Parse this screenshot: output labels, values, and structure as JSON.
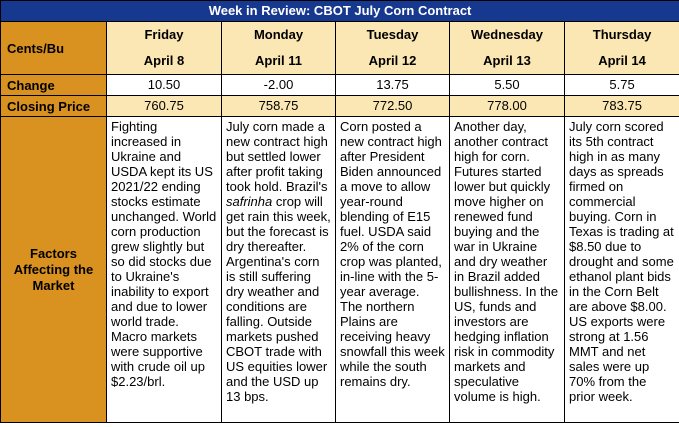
{
  "title": "Week in Review: CBOT July Corn Contract",
  "row_labels": {
    "unit": "Cents/Bu",
    "change": "Change",
    "closing": "Closing Price",
    "factors": "Factors Affecting the Market"
  },
  "days": [
    {
      "name": "Friday",
      "date": "April 8",
      "change": "10.50",
      "closing": "760.75",
      "factor_parts": [
        "Fighting increased in Ukraine and USDA kept its US 2021/22 ending stocks estimate unchanged. World corn production grew slightly but so did stocks due to Ukraine's inability to export and due to lower world trade. Macro markets were supportive with crude oil up $2.23/brl.",
        "",
        ""
      ]
    },
    {
      "name": "Monday",
      "date": "April 11",
      "change": "-2.00",
      "closing": "758.75",
      "factor_parts": [
        "July corn made a new contract high but settled lower after profit taking took hold. Brazil's ",
        "safrinha",
        " crop will get rain this week, but the forecast is dry thereafter. Argentina's corn is still suffering dry weather and conditions are falling. Outside markets pushed CBOT trade with US equities lower and the USD up 13 bps."
      ]
    },
    {
      "name": "Tuesday",
      "date": "April 12",
      "change": "13.75",
      "closing": "772.50",
      "factor_parts": [
        "Corn posted a new contract high after President Biden announced a move to allow year-round blending of E15 fuel. USDA said 2% of the corn crop was planted, in-line with the 5-year average. The northern Plains are receiving heavy snowfall this week while the south remains dry.",
        "",
        ""
      ]
    },
    {
      "name": "Wednesday",
      "date": "April 13",
      "change": "5.50",
      "closing": "778.00",
      "factor_parts": [
        "Another day, another contract high for corn. Futures started lower but quickly move higher on renewed fund buying and the war in Ukraine and dry weather in Brazil added bullishness. In the US, funds and investors are hedging inflation risk in commodity markets and speculative volume is high.",
        "",
        ""
      ]
    },
    {
      "name": "Thursday",
      "date": "April 14",
      "change": "5.75",
      "closing": "783.75",
      "factor_parts": [
        "July corn scored its 5th contract high in as many days as spreads firmed on commercial buying. Corn in Texas is trading at $8.50 due to drought and some ethanol plant bids in the Corn Belt are above $8.00. US exports were strong at 1.56 MMT and net sales were up 70% from the prior week.",
        "",
        ""
      ]
    }
  ],
  "colors": {
    "title_bg": "#17388f",
    "label_bg": "#d9911f",
    "highlight_bg": "#fbe7b3"
  }
}
